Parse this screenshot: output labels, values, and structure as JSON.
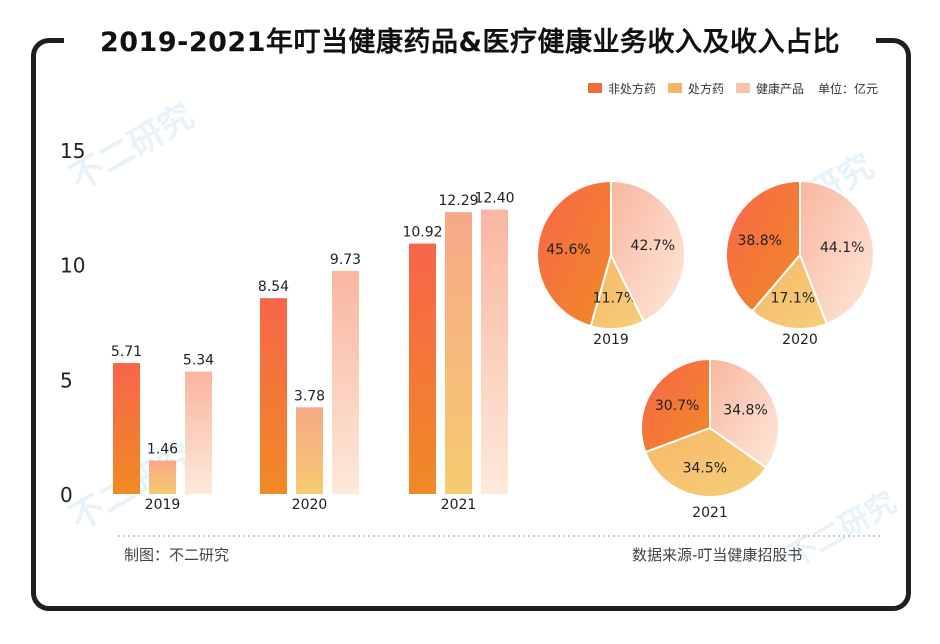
{
  "title": "2019-2021年叮当健康药品&医疗健康业务收入及收入占比",
  "legend": {
    "items": [
      {
        "label": "非处方药",
        "color": "#f06a3a"
      },
      {
        "label": "处方药",
        "color": "#f5b866"
      },
      {
        "label": "健康产品",
        "color": "#f8c5aa"
      }
    ],
    "unit": "单位：亿元"
  },
  "chart_data": [
    {
      "type": "bar",
      "title": "2019-2021年叮当健康药品&医疗健康业务收入",
      "categories": [
        "2019",
        "2020",
        "2021"
      ],
      "series": [
        {
          "name": "非处方药",
          "values": [
            5.71,
            8.54,
            10.92
          ]
        },
        {
          "name": "处方药",
          "values": [
            1.46,
            3.78,
            12.29
          ]
        },
        {
          "name": "健康产品",
          "values": [
            5.34,
            9.73,
            12.4
          ]
        }
      ],
      "value_labels": [
        [
          "5.71",
          "8.54",
          "10.92"
        ],
        [
          "1.46",
          "3.78",
          "12.29"
        ],
        [
          "5.34",
          "9.73",
          "12.40"
        ]
      ],
      "yticks": [
        "0",
        "5",
        "10",
        "15"
      ],
      "ylim": [
        0,
        15
      ],
      "unit": "亿元"
    },
    {
      "type": "pie",
      "title": "2019",
      "labels": [
        "非处方药",
        "处方药",
        "健康产品"
      ],
      "values": [
        45.6,
        11.7,
        42.7
      ],
      "value_labels": [
        "45.6%",
        "11.7%",
        "42.7%"
      ]
    },
    {
      "type": "pie",
      "title": "2020",
      "labels": [
        "非处方药",
        "处方药",
        "健康产品"
      ],
      "values": [
        38.8,
        17.1,
        44.1
      ],
      "value_labels": [
        "38.8%",
        "17.1%",
        "44.1%"
      ]
    },
    {
      "type": "pie",
      "title": "2021",
      "labels": [
        "非处方药",
        "处方药",
        "健康产品"
      ],
      "values": [
        30.7,
        34.5,
        34.8
      ],
      "value_labels": [
        "30.7%",
        "34.5%",
        "34.8%"
      ]
    }
  ],
  "footer": {
    "left": "制图：不二研究",
    "right": "数据来源-叮当健康招股书"
  },
  "watermark": "不二研究",
  "colors": {
    "otc_top": "#f8654a",
    "otc_bottom": "#f08a25",
    "rx_top": "#f7a888",
    "rx_bottom": "#f6cb6e",
    "health_top": "#f9b6a0",
    "health_bottom": "#fde9da",
    "frame": "#1f1f1f",
    "axis_text": "#222222"
  }
}
